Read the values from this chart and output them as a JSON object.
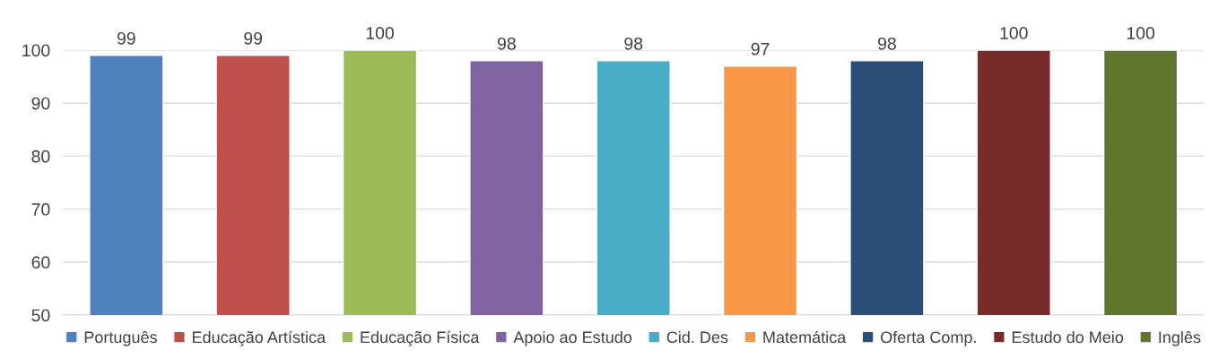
{
  "chart_data": {
    "type": "bar",
    "categories": [
      null,
      null,
      null,
      null,
      null,
      null,
      null,
      null,
      null
    ],
    "series": [
      {
        "name": "Português",
        "color": "#4f81bd",
        "values": [
          99,
          null,
          null,
          null,
          null,
          null,
          null,
          null,
          null
        ]
      },
      {
        "name": "Educação Artística",
        "color": "#c0504d",
        "values": [
          null,
          99,
          null,
          null,
          null,
          null,
          null,
          null,
          null
        ]
      },
      {
        "name": "Educação Física",
        "color": "#9bbb59",
        "values": [
          null,
          null,
          100,
          null,
          null,
          null,
          null,
          null,
          null
        ]
      },
      {
        "name": "Apoio ao Estudo",
        "color": "#8064a2",
        "values": [
          null,
          null,
          null,
          98,
          null,
          null,
          null,
          null,
          null
        ]
      },
      {
        "name": "Cid. Des",
        "color": "#4bacc6",
        "values": [
          null,
          null,
          null,
          null,
          98,
          null,
          null,
          null,
          null
        ]
      },
      {
        "name": "Matemática",
        "color": "#f79646",
        "values": [
          null,
          null,
          null,
          null,
          null,
          97,
          null,
          null,
          null
        ]
      },
      {
        "name": "Oferta Comp.",
        "color": "#2c4d75",
        "values": [
          null,
          null,
          null,
          null,
          null,
          null,
          98,
          null,
          null
        ]
      },
      {
        "name": "Estudo do Meio",
        "color": "#772c2a",
        "values": [
          null,
          null,
          null,
          null,
          null,
          null,
          null,
          100,
          null
        ]
      },
      {
        "name": "Inglês",
        "color": "#5f7530",
        "values": [
          null,
          null,
          null,
          null,
          null,
          null,
          null,
          null,
          100
        ]
      }
    ],
    "ylim": [
      50,
      100
    ],
    "yticks": [
      50,
      60,
      70,
      80,
      90,
      100
    ],
    "grid": "y",
    "legend": "bottom",
    "data_labels": true
  }
}
